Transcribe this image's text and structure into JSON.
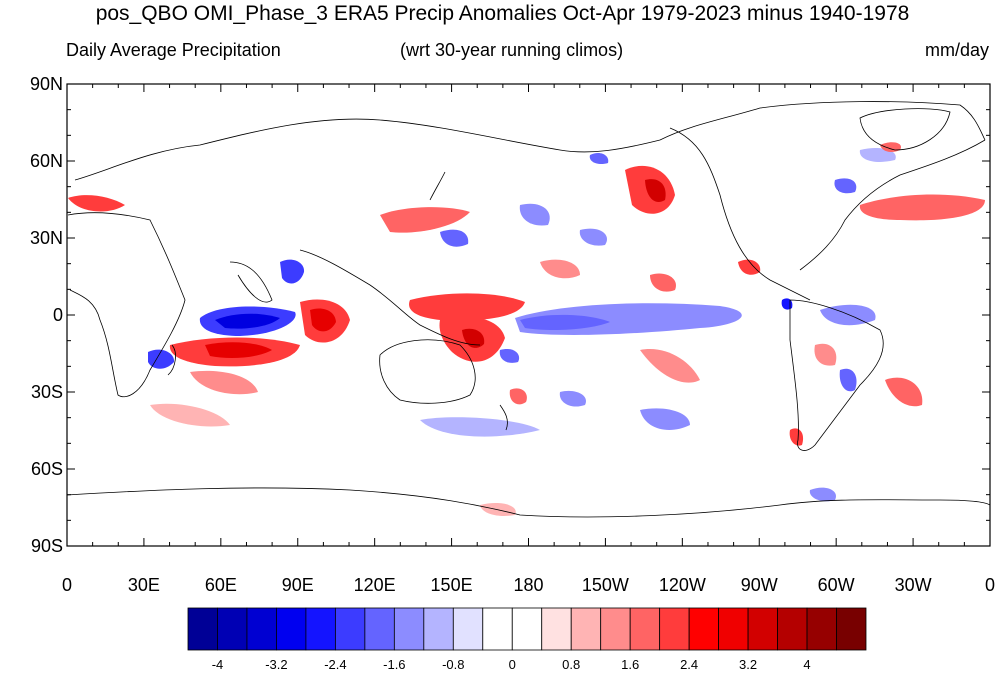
{
  "title": "pos_QBO OMI_Phase_3 ERA5 Precip Anomalies Oct-Apr 1979-2023 minus 1940-1978",
  "subtitle_left": "Daily Average Precipitation",
  "subtitle_center": "(wrt 30-year running climos)",
  "subtitle_right": "mm/day",
  "lat_labels": [
    "90N",
    "60N",
    "30N",
    "0",
    "30S",
    "60S",
    "90S"
  ],
  "lon_labels": [
    "0",
    "30E",
    "60E",
    "90E",
    "120E",
    "150E",
    "180",
    "150W",
    "120W",
    "90W",
    "60W",
    "30W",
    "0"
  ],
  "colorbar": {
    "labels": [
      "-4",
      "-3.2",
      "-2.4",
      "-1.6",
      "-0.8",
      "0",
      "0.8",
      "1.6",
      "2.4",
      "3.2",
      "4"
    ],
    "colors": [
      "#000096",
      "#0000b4",
      "#0000d2",
      "#0000f0",
      "#1414ff",
      "#3c3cff",
      "#6464ff",
      "#8c8cff",
      "#b4b4ff",
      "#e1e1ff",
      "#ffffff",
      "#ffffff",
      "#ffe1e1",
      "#ffb4b4",
      "#ff8c8c",
      "#ff6464",
      "#ff3c3c",
      "#ff0000",
      "#f00000",
      "#d20000",
      "#b40000",
      "#960000",
      "#780000"
    ]
  },
  "colors": {
    "positive": "#e61e1e",
    "negative": "#1e28dc"
  }
}
